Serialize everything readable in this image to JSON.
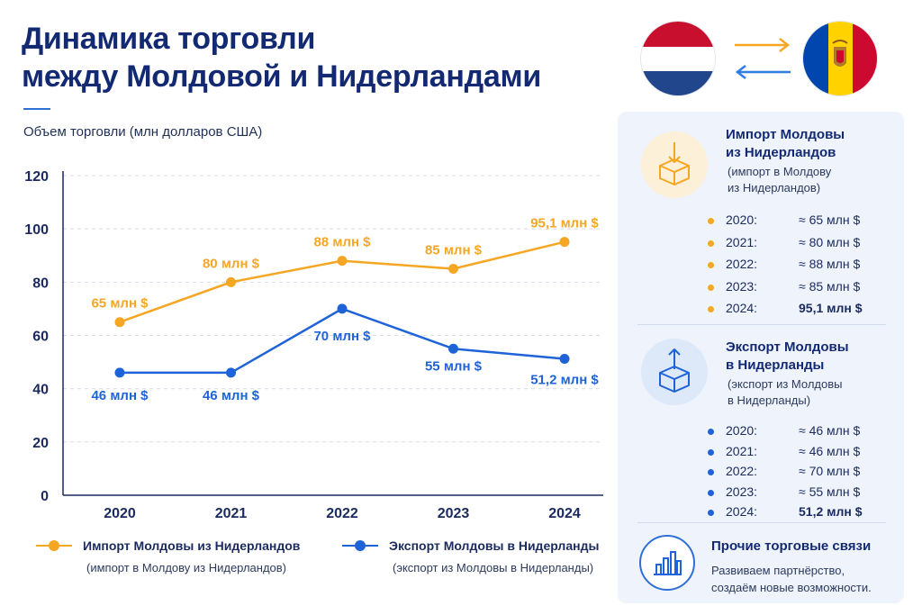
{
  "title_lines": [
    "Динамика торговли",
    "между Молдовой и Нидерландами"
  ],
  "subtitle": "Объем торговли (млн долларов США)",
  "colors": {
    "import": "#f5a623",
    "export": "#1f63d8",
    "title": "#132a73",
    "grid": "#d6dbe6"
  },
  "chart_data": {
    "type": "line",
    "title": "Динамика торговли между Молдовой и Нидерландами",
    "ylabel": "Объем торговли (млн долларов США)",
    "xlabel": "",
    "categories": [
      "2020",
      "2021",
      "2022",
      "2023",
      "2024"
    ],
    "ylim": [
      0,
      120
    ],
    "yticks": [
      0,
      20,
      40,
      60,
      80,
      100,
      120
    ],
    "grid": "horizontal-dashed",
    "legend": "bottom",
    "series": [
      {
        "name": "Импорт Молдовы из Нидерландов",
        "values": [
          65,
          80,
          88,
          85,
          95.1
        ],
        "labels": [
          "65 млн $",
          "80 млн $",
          "88 млн $",
          "85 млн $",
          "95,1 млн $"
        ],
        "color": "#f5a623"
      },
      {
        "name": "Экспорт Молдовы в Нидерланды",
        "values": [
          46,
          46,
          70,
          55,
          51.2
        ],
        "labels": [
          "46 млн $",
          "46 млн $",
          "70 млн $",
          "55 млн $",
          "51,2 млн $"
        ],
        "color": "#1f63d8"
      }
    ]
  },
  "legend": {
    "import_name": "Импорт Молдовы из Нидерландов",
    "import_note": "(импорт в Молдову из Нидерландов)",
    "export_name": "Экспорт Молдовы в Нидерланды",
    "export_note": "(экспорт из Молдовы в Нидерланды)"
  },
  "panel": {
    "import": {
      "head": [
        "Импорт Молдовы",
        "из Нидерландов"
      ],
      "note": [
        "(импорт в Молдову",
        "из Нидерландов)"
      ],
      "rows": [
        {
          "year": "2020:",
          "value": "≈ 65 млн $"
        },
        {
          "year": "2021:",
          "value": "≈ 80 млн $"
        },
        {
          "year": "2022:",
          "value": "≈ 88 млн $"
        },
        {
          "year": "2023:",
          "value": "≈ 85 млн $"
        },
        {
          "year": "2024:",
          "value": "95,1 млн $"
        }
      ]
    },
    "export": {
      "head": [
        "Экспорт Молдовы",
        "в Нидерланды"
      ],
      "note": [
        "(экспорт из Молдовы",
        "в Нидерланды)"
      ],
      "rows": [
        {
          "year": "2020:",
          "value": "≈ 46 млн $"
        },
        {
          "year": "2021:",
          "value": "≈ 46 млн $"
        },
        {
          "year": "2022:",
          "value": "≈ 70 млн $"
        },
        {
          "year": "2023:",
          "value": "≈ 55 млн $"
        },
        {
          "year": "2024:",
          "value": "51,2 млн $"
        }
      ]
    },
    "other": {
      "title": "Прочие торговые связи",
      "text": [
        "Развиваем партнёрство,",
        "создаём новые возможности."
      ]
    }
  },
  "icons": {
    "import": "box-arrow-in-icon",
    "export": "box-arrow-out-icon",
    "other": "bar-chart-icon",
    "flag_left": "netherlands-flag-icon",
    "flag_right": "moldova-flag-icon",
    "exchange": "exchange-arrows-icon"
  }
}
